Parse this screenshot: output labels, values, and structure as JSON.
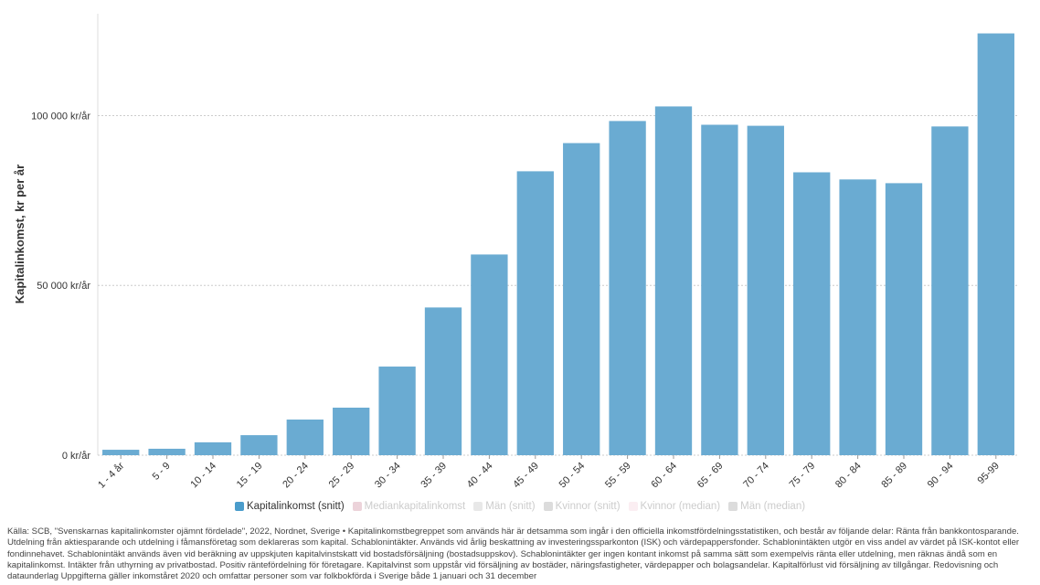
{
  "chart_data": {
    "type": "bar",
    "ylabel": "Kapitalinkomst, kr per år",
    "xlabel": "",
    "ylim": [
      0,
      130000
    ],
    "yticks": [
      0,
      50000,
      100000
    ],
    "ytick_labels": [
      "0 kr/år",
      "50 000 kr/år",
      "100 000 kr/år"
    ],
    "grid": true,
    "categories": [
      "1 - 4 år",
      "5 - 9",
      "10 - 14",
      "15 - 19",
      "20 - 24",
      "25 - 29",
      "30 - 34",
      "35 - 39",
      "40 - 44",
      "45 - 49",
      "50 - 54",
      "55 - 59",
      "60 - 64",
      "65 - 69",
      "70 - 74",
      "75 - 79",
      "80 - 84",
      "85 - 89",
      "90 - 94",
      "95-99"
    ],
    "series": [
      {
        "name": "Kapitalinkomst (snitt)",
        "color": "#6aabd2",
        "values": [
          1600,
          1900,
          3800,
          5900,
          10500,
          14000,
          26100,
          43500,
          59100,
          83600,
          91900,
          98400,
          102700,
          97300,
          97000,
          83300,
          81200,
          80100,
          96800,
          124200
        ]
      }
    ],
    "legend": [
      {
        "label": "Kapitalinkomst (snitt)",
        "color": "#4a9ccb",
        "active": true
      },
      {
        "label": "Mediankapitalinkomst",
        "color": "#ecd3da",
        "active": false
      },
      {
        "label": "Män (snitt)",
        "color": "#e8e8e8",
        "active": false
      },
      {
        "label": "Kvinnor (snitt)",
        "color": "#dcdcdc",
        "active": false
      },
      {
        "label": "Kvinnor (median)",
        "color": "#fbeef2",
        "active": false
      },
      {
        "label": "Män (median)",
        "color": "#dcdcdc",
        "active": false
      }
    ],
    "legend_position": "bottom-center"
  },
  "source": "Källa: SCB, \"Svenskarnas kapitalinkomster ojämnt fördelade\", 2022, Nordnet, Sverige • Kapitalinkomstbegreppet som används här är detsamma som ingår i den officiella inkomstfördelningsstatistiken, och består av följande delar: Ränta från bankkontosparande. Utdelning från aktiesparande och utdelning i fåmansföretag som deklareras som kapital. Schablonintäkter. Används vid årlig beskattning av investeringssparkonton (ISK) och värdepappersfonder. Schablonintäkten utgör en viss andel av värdet på ISK-kontot eller fondinnehavet. Schablonintäkt används även vid beräkning av uppskjuten kapitalvinstskatt vid bostadsförsäljning (bostadsuppskov). Schablonintäkter ger ingen kontant inkomst på samma sätt som exempelvis ränta eller utdelning, men räknas ändå som en kapitalinkomst. Intäkter från uthyrning av privatbostad. Positiv räntefördelning för företagare. Kapitalvinst som uppstår vid försäljning av bostäder, näringsfastigheter, värdepapper och bolagsandelar. Kapitalförlust vid försäljning av tillgångar. Redovisning och dataunderlag Uppgifterna gäller inkomståret 2020 och omfattar personer som var folkbokförda i Sverige både 1 januari och 31 december"
}
